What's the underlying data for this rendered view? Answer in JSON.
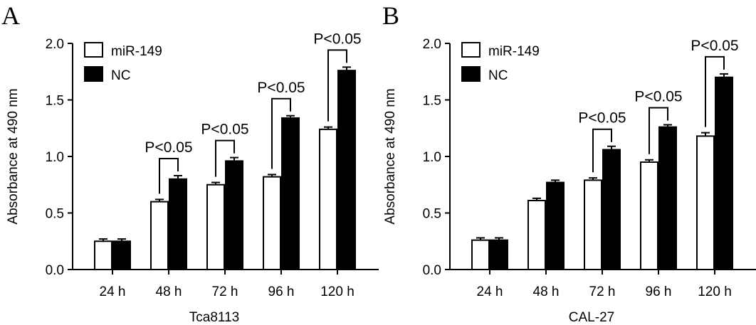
{
  "chart_data": [
    {
      "panel": "A",
      "type": "bar",
      "xlabel": "Tca8113",
      "ylabel": "Absorbance at 490 nm",
      "ylim": [
        0,
        2.0
      ],
      "yticks": [
        "0.0",
        "0.5",
        "1.0",
        "1.5",
        "2.0"
      ],
      "categories": [
        "24 h",
        "48 h",
        "72 h",
        "96 h",
        "120 h"
      ],
      "series": [
        {
          "name": "miR-149",
          "fill": "#ffffff",
          "values": [
            0.25,
            0.6,
            0.75,
            0.82,
            1.24
          ],
          "errors": [
            0.02,
            0.02,
            0.02,
            0.02,
            0.02
          ]
        },
        {
          "name": "NC",
          "fill": "#000000",
          "values": [
            0.25,
            0.8,
            0.96,
            1.34,
            1.76
          ],
          "errors": [
            0.02,
            0.03,
            0.03,
            0.02,
            0.03
          ]
        }
      ],
      "annotations": [
        {
          "category": "48 h",
          "text": "P<0.05"
        },
        {
          "category": "72 h",
          "text": "P<0.05"
        },
        {
          "category": "96 h",
          "text": "P<0.05"
        },
        {
          "category": "120 h",
          "text": "P<0.05"
        }
      ],
      "legend": "top-left",
      "grid": false
    },
    {
      "panel": "B",
      "type": "bar",
      "xlabel": "CAL-27",
      "ylabel": "Absorbance at 490 nm",
      "ylim": [
        0,
        2.0
      ],
      "yticks": [
        "0.0",
        "0.5",
        "1.0",
        "1.5",
        "2.0"
      ],
      "categories": [
        "24 h",
        "48 h",
        "72 h",
        "96 h",
        "120 h"
      ],
      "series": [
        {
          "name": "miR-149",
          "fill": "#ffffff",
          "values": [
            0.26,
            0.61,
            0.79,
            0.95,
            1.18
          ],
          "errors": [
            0.02,
            0.02,
            0.02,
            0.02,
            0.03
          ]
        },
        {
          "name": "NC",
          "fill": "#000000",
          "values": [
            0.26,
            0.77,
            1.06,
            1.26,
            1.7
          ],
          "errors": [
            0.02,
            0.02,
            0.03,
            0.02,
            0.03
          ]
        }
      ],
      "annotations": [
        {
          "category": "72 h",
          "text": "P<0.05"
        },
        {
          "category": "96 h",
          "text": "P<0.05"
        },
        {
          "category": "120 h",
          "text": "P<0.05"
        }
      ],
      "legend": "top-left",
      "grid": false
    }
  ]
}
